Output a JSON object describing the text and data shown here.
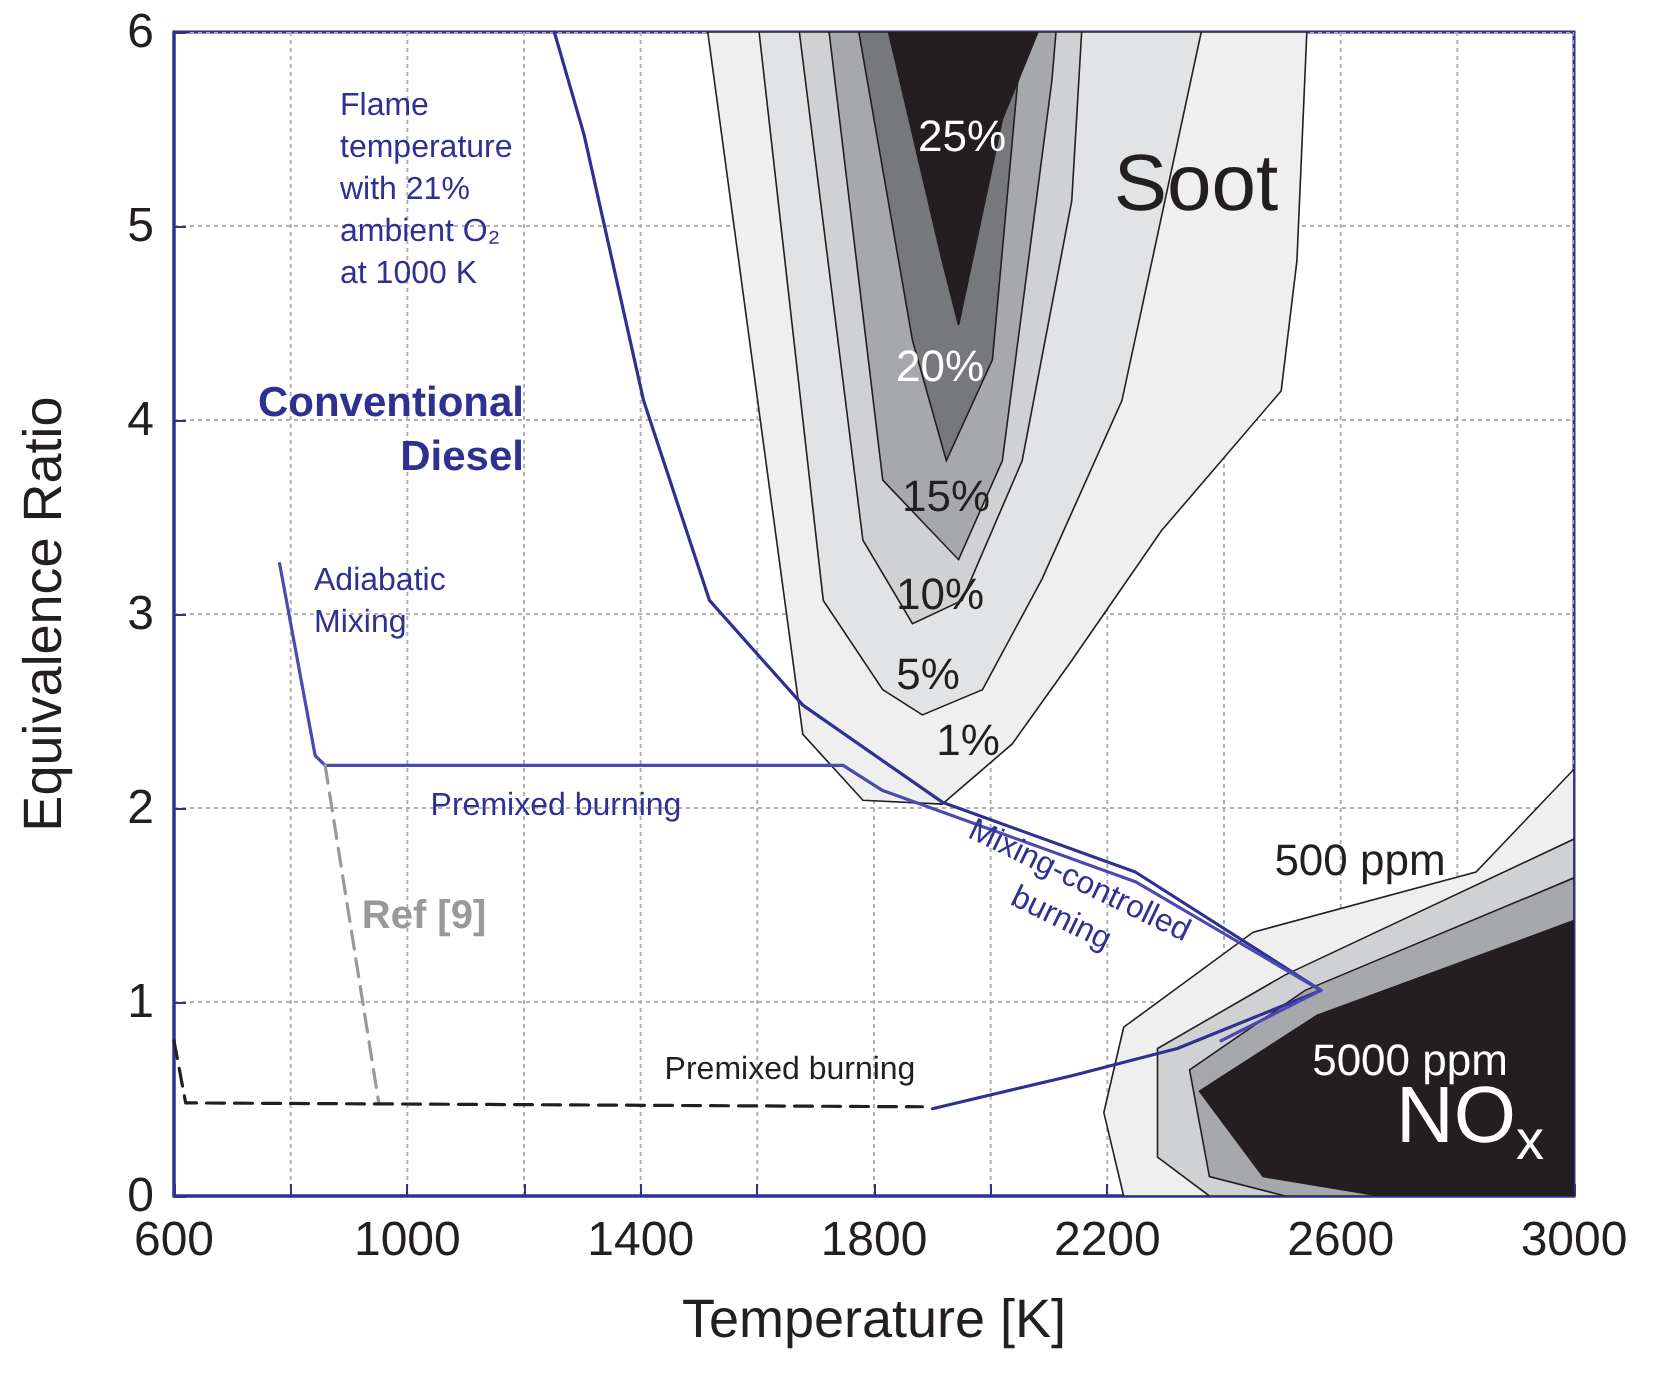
{
  "chart_data": {
    "type": "line",
    "xlabel": "Temperature [K]",
    "ylabel": "Equivalence Ratio",
    "xlim": [
      600,
      3000
    ],
    "ylim": [
      0,
      6
    ],
    "xticks": [
      600,
      {
        "value": 800,
        "label": null
      },
      1000,
      {
        "value": 1200,
        "label": null
      },
      1400,
      {
        "value": 1600,
        "label": null
      },
      1800,
      {
        "value": 2000,
        "label": null
      },
      2200,
      {
        "value": 2400,
        "label": null
      },
      2600,
      {
        "value": 2800,
        "label": null
      },
      3000
    ],
    "yticks": [
      0,
      1,
      2,
      3,
      4,
      5,
      6
    ],
    "grid": true,
    "marker": "none",
    "series": [
      {
        "type": "area",
        "color": "#efefef",
        "x": [
          1515,
          1678,
          1781,
          1917,
          2037,
          2139,
          2293,
          2498,
          2525,
          2542
        ],
        "values": [
          6,
          2.38,
          2.04,
          2.02,
          2.33,
          2.76,
          3.43,
          4.15,
          4.82,
          6
        ]
      },
      {
        "type": "area",
        "color": "#e2e3e5",
        "x": [
          1603,
          1713,
          1815,
          1883,
          1986,
          2088,
          2225,
          2361
        ],
        "values": [
          6,
          3.07,
          2.61,
          2.48,
          2.61,
          3.18,
          4.1,
          6
        ]
      },
      {
        "type": "area",
        "color": "#d0d1d3",
        "x": [
          1672,
          1781,
          1866,
          1951,
          2054,
          2139,
          2156
        ],
        "values": [
          6,
          3.38,
          2.95,
          3.07,
          3.79,
          5.13,
          6
        ]
      },
      {
        "type": "area",
        "color": "#a7a8ab",
        "x": [
          1723,
          1815,
          1945,
          2020,
          2105,
          2112
        ],
        "values": [
          6,
          3.69,
          3.28,
          3.79,
          5.75,
          6
        ]
      },
      {
        "type": "area",
        "color": "#77787b",
        "x": [
          1774,
          1866,
          1924,
          2003,
          2054
        ],
        "values": [
          6,
          4.41,
          3.79,
          4.31,
          6
        ]
      },
      {
        "type": "area",
        "color": "#231f20",
        "x": [
          1825,
          1917,
          1945,
          2020,
          2081
        ],
        "values": [
          6,
          4.82,
          4.49,
          5.55,
          6
        ]
      },
      {
        "type": "area",
        "color": "#efefef",
        "x": [
          3000,
          2832,
          2450,
          2228,
          2194,
          2228,
          3000
        ],
        "values": [
          2.2,
          1.67,
          1.36,
          0.87,
          0.43,
          0,
          0
        ]
      },
      {
        "type": "area",
        "color": "#d0d1d3",
        "x": [
          3000,
          2505,
          2286,
          2286,
          2375,
          3000
        ],
        "values": [
          1.84,
          1.14,
          0.76,
          0.2,
          0,
          0
        ]
      },
      {
        "type": "area",
        "color": "#a7a8ab",
        "x": [
          3000,
          2539,
          2341,
          2375,
          2505,
          3000
        ],
        "values": [
          1.64,
          1.06,
          0.65,
          0.1,
          0,
          0
        ]
      },
      {
        "type": "area",
        "color": "#231f20",
        "x": [
          3000,
          2559,
          2358,
          2467,
          2668,
          3000
        ],
        "values": [
          1.42,
          0.93,
          0.54,
          0.1,
          0,
          0
        ]
      },
      {
        "color": "#2e3192",
        "x": [
          1252,
          1303,
          1405,
          1518,
          1678,
          1917,
          2248,
          2566,
          2320,
          2139,
          1900
        ],
        "values": [
          6,
          5.47,
          4.1,
          3.07,
          2.53,
          2.03,
          1.67,
          1.06,
          0.76,
          0.62,
          0.45
        ]
      },
      {
        "color": "#4a4ab0",
        "x": [
          781,
          842,
          859,
          1747,
          1815,
          2248,
          2566,
          2395
        ],
        "values": [
          3.26,
          2.27,
          2.22,
          2.22,
          2.09,
          1.62,
          1.06,
          0.8
        ]
      },
      {
        "color": "#999999",
        "line_style": "dashed",
        "x": [
          859,
          951
        ],
        "values": [
          2.22,
          0.48
        ]
      },
      {
        "color": "#231f20",
        "line_style": "dashed",
        "x": [
          600,
          620,
          1883
        ],
        "values": [
          0.8,
          0.48,
          0.46
        ]
      }
    ],
    "annotations": [
      "Flame\ntemperature\nwith 21%\nambient O₂\nat 1000 K",
      "Conventional\nDiesel",
      "Adiabatic\nMixing",
      "Premixed burning",
      "Mixing-controlled\nburning",
      "Ref [9]",
      "Premixed burning",
      "Soot",
      "NO$_{x}$",
      "25%",
      "20%",
      "15%",
      "10%",
      "5%",
      "1%",
      "500 ppm",
      "5000 ppm"
    ]
  }
}
